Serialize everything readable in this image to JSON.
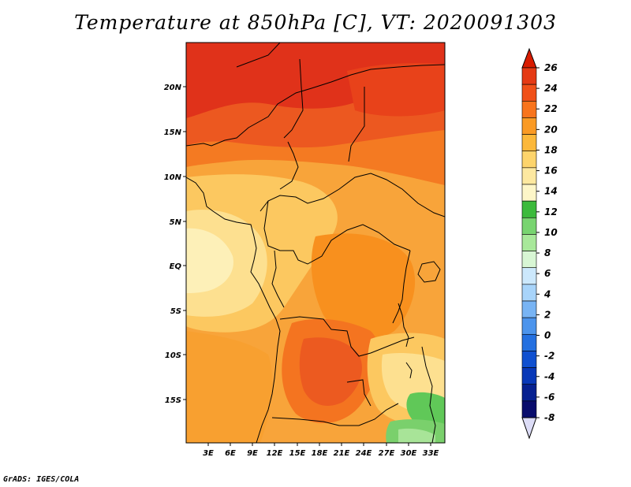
{
  "title": "Temperature at 850hPa [C], VT: 2020091303",
  "credit": "GrADS: IGES/COLA",
  "map": {
    "lat_labels": [
      "20N",
      "15N",
      "10N",
      "5N",
      "EQ",
      "5S",
      "10S",
      "15S"
    ],
    "lon_labels": [
      "3E",
      "6E",
      "9E",
      "12E",
      "15E",
      "18E",
      "21E",
      "24E",
      "27E",
      "30E",
      "33E"
    ]
  },
  "colorbar": {
    "labels": [
      "26",
      "24",
      "22",
      "20",
      "18",
      "16",
      "14",
      "12",
      "10",
      "8",
      "6",
      "4",
      "2",
      "0",
      "-2",
      "-4",
      "-6",
      "-8"
    ],
    "top_color": "#d81c00",
    "bottom_color": "#dcdcf6",
    "colors": [
      "#e53a14",
      "#f05018",
      "#f8741c",
      "#fa9a24",
      "#fcb83a",
      "#fdd46c",
      "#fde8a0",
      "#fdf6c8",
      "#3cba3c",
      "#78d470",
      "#a8e89a",
      "#d8f6d4",
      "#cce8fc",
      "#a8d4fa",
      "#78b4f4",
      "#4c94ec",
      "#2470e0",
      "#1050d0",
      "#0838b8",
      "#062090",
      "#080c6c"
    ]
  }
}
